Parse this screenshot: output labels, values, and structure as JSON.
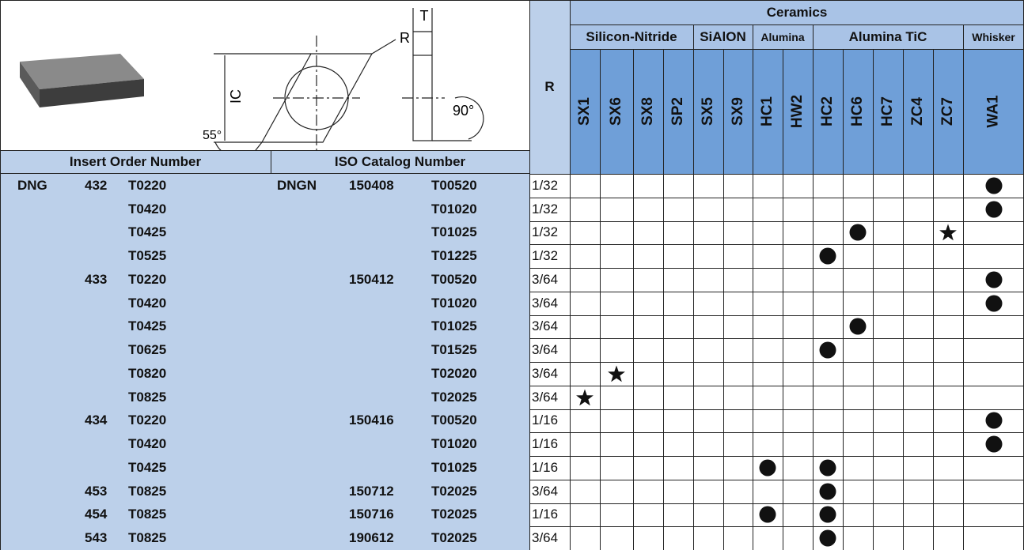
{
  "diagram": {
    "labels": {
      "t": "T",
      "r": "R",
      "ic": "IC",
      "angle_right": "90°",
      "angle_left": "55°"
    }
  },
  "header": {
    "insert_order_number": "Insert Order Number",
    "iso_catalog_number": "ISO Catalog Number",
    "r": "R",
    "ceramics": "Ceramics",
    "groups": [
      {
        "name": "Silicon-Nitride",
        "span": 4
      },
      {
        "name": "SiAlON",
        "span": 2
      },
      {
        "name": "Alumina",
        "span": 2
      },
      {
        "name": "Alumina TiC",
        "span": 5
      },
      {
        "name": "Whisker",
        "span": 1
      }
    ],
    "grades": [
      "SX1",
      "SX6",
      "SX8",
      "SP2",
      "SX5",
      "SX9",
      "HC1",
      "HW2",
      "HC2",
      "HC6",
      "HC7",
      "ZC4",
      "ZC7",
      "WA1"
    ]
  },
  "table": {
    "rows": [
      {
        "insert": [
          "DNG",
          "432",
          "T0220"
        ],
        "iso": [
          "DNGN",
          "150408",
          "T00520"
        ],
        "r": "1/32",
        "marks": {
          "WA1": "circle"
        }
      },
      {
        "insert": [
          null,
          null,
          "T0420"
        ],
        "iso": [
          null,
          null,
          "T01020"
        ],
        "r": "1/32",
        "marks": {
          "WA1": "circle"
        }
      },
      {
        "insert": [
          null,
          null,
          "T0425"
        ],
        "iso": [
          null,
          null,
          "T01025"
        ],
        "r": "1/32",
        "marks": {
          "HC6": "circle",
          "ZC7": "star"
        }
      },
      {
        "insert": [
          null,
          null,
          "T0525"
        ],
        "iso": [
          null,
          null,
          "T01225"
        ],
        "r": "1/32",
        "marks": {
          "HC2": "circle"
        }
      },
      {
        "insert": [
          null,
          "433",
          "T0220"
        ],
        "iso": [
          null,
          "150412",
          "T00520"
        ],
        "r": "3/64",
        "marks": {
          "WA1": "circle"
        }
      },
      {
        "insert": [
          null,
          null,
          "T0420"
        ],
        "iso": [
          null,
          null,
          "T01020"
        ],
        "r": "3/64",
        "marks": {
          "WA1": "circle"
        }
      },
      {
        "insert": [
          null,
          null,
          "T0425"
        ],
        "iso": [
          null,
          null,
          "T01025"
        ],
        "r": "3/64",
        "marks": {
          "HC6": "circle"
        }
      },
      {
        "insert": [
          null,
          null,
          "T0625"
        ],
        "iso": [
          null,
          null,
          "T01525"
        ],
        "r": "3/64",
        "marks": {
          "HC2": "circle"
        }
      },
      {
        "insert": [
          null,
          null,
          "T0820"
        ],
        "iso": [
          null,
          null,
          "T02020"
        ],
        "r": "3/64",
        "marks": {
          "SX6": "star"
        }
      },
      {
        "insert": [
          null,
          null,
          "T0825"
        ],
        "iso": [
          null,
          null,
          "T02025"
        ],
        "r": "3/64",
        "marks": {
          "SX1": "star"
        }
      },
      {
        "insert": [
          null,
          "434",
          "T0220"
        ],
        "iso": [
          null,
          "150416",
          "T00520"
        ],
        "r": "1/16",
        "marks": {
          "WA1": "circle"
        }
      },
      {
        "insert": [
          null,
          null,
          "T0420"
        ],
        "iso": [
          null,
          null,
          "T01020"
        ],
        "r": "1/16",
        "marks": {
          "WA1": "circle"
        }
      },
      {
        "insert": [
          null,
          null,
          "T0425"
        ],
        "iso": [
          null,
          null,
          "T01025"
        ],
        "r": "1/16",
        "marks": {
          "HC1": "circle",
          "HC2": "circle"
        }
      },
      {
        "insert": [
          null,
          "453",
          "T0825"
        ],
        "iso": [
          null,
          "150712",
          "T02025"
        ],
        "r": "3/64",
        "marks": {
          "HC2": "circle"
        }
      },
      {
        "insert": [
          null,
          "454",
          "T0825"
        ],
        "iso": [
          null,
          "150716",
          "T02025"
        ],
        "r": "1/16",
        "marks": {
          "HC1": "circle",
          "HC2": "circle"
        }
      },
      {
        "insert": [
          null,
          "543",
          "T0825"
        ],
        "iso": [
          null,
          "190612",
          "T02025"
        ],
        "r": "3/64",
        "marks": {
          "HC2": "circle"
        }
      }
    ]
  }
}
